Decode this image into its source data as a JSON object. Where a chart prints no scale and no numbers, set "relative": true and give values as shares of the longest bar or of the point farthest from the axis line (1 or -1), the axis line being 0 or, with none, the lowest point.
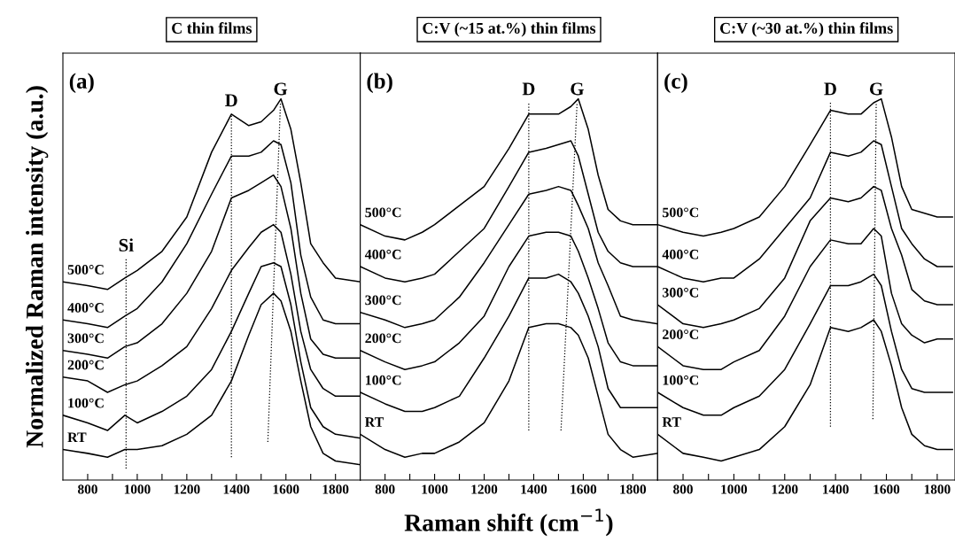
{
  "chart_data": [
    {
      "type": "line",
      "title": "C thin films",
      "ylabel": "Normalized Raman intensity (a.u.)",
      "relative": true,
      "tick_labels": "x",
      "line_style": "solid",
      "x": [
        700,
        800,
        880,
        950,
        1000,
        1100,
        1200,
        1300,
        1380,
        1450,
        1500,
        1550,
        1580,
        1620,
        1660,
        1700,
        1750,
        1800,
        1900
      ],
      "xlim": [
        700,
        1900
      ],
      "xticks": [
        800,
        {
          "value": 900,
          "label": null
        },
        1000,
        {
          "value": 1100,
          "label": null
        },
        1200,
        {
          "value": 1300,
          "label": null
        },
        1400,
        {
          "value": 1500,
          "label": null
        },
        1600,
        {
          "value": 1700,
          "label": null
        },
        1800
      ],
      "series": [
        {
          "name": "RT",
          "color": "#000000",
          "values": [
            0.08,
            0.07,
            0.06,
            0.08,
            0.08,
            0.09,
            0.12,
            0.17,
            0.26,
            0.38,
            0.46,
            0.49,
            0.47,
            0.39,
            0.26,
            0.14,
            0.07,
            0.05,
            0.04
          ]
        },
        {
          "name": "100°C",
          "color": "#000000",
          "values": [
            0.17,
            0.15,
            0.13,
            0.17,
            0.15,
            0.18,
            0.22,
            0.29,
            0.39,
            0.49,
            0.56,
            0.57,
            0.56,
            0.46,
            0.31,
            0.19,
            0.14,
            0.12,
            0.11
          ]
        },
        {
          "name": "200°C",
          "color": "#000000",
          "values": [
            0.27,
            0.26,
            0.23,
            0.25,
            0.26,
            0.3,
            0.35,
            0.45,
            0.55,
            0.61,
            0.65,
            0.67,
            0.65,
            0.54,
            0.39,
            0.29,
            0.24,
            0.22,
            0.22
          ]
        },
        {
          "name": "300°C",
          "color": "#000000",
          "values": [
            0.34,
            0.33,
            0.32,
            0.35,
            0.36,
            0.41,
            0.49,
            0.6,
            0.74,
            0.76,
            0.78,
            0.8,
            0.77,
            0.66,
            0.49,
            0.37,
            0.33,
            0.32,
            0.32
          ]
        },
        {
          "name": "400°C",
          "color": "#000000",
          "values": [
            0.42,
            0.41,
            0.4,
            0.43,
            0.45,
            0.52,
            0.62,
            0.75,
            0.85,
            0.85,
            0.86,
            0.89,
            0.88,
            0.78,
            0.59,
            0.48,
            0.42,
            0.41,
            0.41
          ]
        },
        {
          "name": "500°C",
          "color": "#000000",
          "values": [
            0.52,
            0.51,
            0.5,
            0.53,
            0.55,
            0.6,
            0.69,
            0.86,
            0.96,
            0.93,
            0.94,
            0.97,
            1.0,
            0.92,
            0.78,
            0.62,
            0.57,
            0.53,
            0.52
          ]
        },
        {
          "color": "#000000",
          "line_style": "dotted",
          "x": [
            955,
            955
          ],
          "values": [
            0.03,
            0.58
          ]
        },
        {
          "color": "#000000",
          "line_style": "dotted",
          "x": [
            1380,
            1380
          ],
          "values": [
            0.06,
            0.96
          ]
        },
        {
          "color": "#000000",
          "line_style": "dotted",
          "x": [
            1527,
            1578
          ],
          "values": [
            0.1,
            0.99
          ]
        }
      ],
      "annotations": [
        "(a)",
        "Si",
        "D",
        "G"
      ]
    },
    {
      "type": "line",
      "title": "C:V (~15 at.%) thin films",
      "xlabel": "Raman shift (cm$^{−1}$)",
      "relative": true,
      "tick_labels": "x",
      "line_style": "solid",
      "x": [
        700,
        800,
        880,
        950,
        1000,
        1100,
        1200,
        1300,
        1380,
        1450,
        1500,
        1550,
        1580,
        1620,
        1660,
        1700,
        1750,
        1800,
        1900
      ],
      "xlim": [
        700,
        1900
      ],
      "xticks": [
        800,
        {
          "value": 900,
          "label": null
        },
        1000,
        {
          "value": 1100,
          "label": null
        },
        1200,
        {
          "value": 1300,
          "label": null
        },
        1400,
        {
          "value": 1500,
          "label": null
        },
        1600,
        {
          "value": 1700,
          "label": null
        },
        1800
      ],
      "series": [
        {
          "name": "RT",
          "color": "#000000",
          "values": [
            0.12,
            0.08,
            0.06,
            0.07,
            0.07,
            0.1,
            0.15,
            0.26,
            0.4,
            0.41,
            0.41,
            0.4,
            0.38,
            0.32,
            0.22,
            0.12,
            0.08,
            0.06,
            0.07
          ]
        },
        {
          "name": "100°C",
          "color": "#000000",
          "values": [
            0.23,
            0.2,
            0.18,
            0.18,
            0.19,
            0.22,
            0.32,
            0.43,
            0.53,
            0.53,
            0.54,
            0.52,
            0.49,
            0.43,
            0.35,
            0.24,
            0.19,
            0.19,
            0.19
          ]
        },
        {
          "name": "200°C",
          "color": "#000000",
          "values": [
            0.34,
            0.31,
            0.29,
            0.3,
            0.31,
            0.36,
            0.43,
            0.56,
            0.64,
            0.65,
            0.65,
            0.64,
            0.6,
            0.53,
            0.45,
            0.36,
            0.31,
            0.3,
            0.3
          ]
        },
        {
          "name": "300°C",
          "color": "#000000",
          "values": [
            0.44,
            0.42,
            0.4,
            0.41,
            0.42,
            0.48,
            0.57,
            0.67,
            0.75,
            0.76,
            0.77,
            0.76,
            0.72,
            0.66,
            0.57,
            0.51,
            0.43,
            0.42,
            0.41
          ]
        },
        {
          "name": "400°C",
          "color": "#000000",
          "values": [
            0.56,
            0.53,
            0.52,
            0.53,
            0.54,
            0.6,
            0.66,
            0.77,
            0.86,
            0.87,
            0.88,
            0.89,
            0.85,
            0.75,
            0.65,
            0.6,
            0.57,
            0.56,
            0.56
          ]
        },
        {
          "name": "500°C",
          "color": "#000000",
          "values": [
            0.67,
            0.64,
            0.63,
            0.65,
            0.67,
            0.72,
            0.77,
            0.87,
            0.96,
            0.96,
            0.96,
            0.98,
            1.0,
            0.92,
            0.8,
            0.71,
            0.68,
            0.67,
            0.67
          ]
        },
        {
          "color": "#000000",
          "line_style": "dotted",
          "x": [
            1380,
            1380
          ],
          "values": [
            0.13,
            0.99
          ]
        },
        {
          "color": "#000000",
          "line_style": "dotted",
          "x": [
            1510,
            1575
          ],
          "values": [
            0.13,
            0.99
          ]
        }
      ],
      "annotations": [
        "(b)",
        "D",
        "G"
      ]
    },
    {
      "type": "line",
      "title": "C:V (~30 at.%) thin films",
      "relative": true,
      "tick_labels": "x",
      "line_style": "solid",
      "x": [
        700,
        800,
        880,
        950,
        1000,
        1100,
        1200,
        1300,
        1380,
        1450,
        1500,
        1550,
        1580,
        1620,
        1660,
        1700,
        1750,
        1800,
        1860
      ],
      "xlim": [
        700,
        1870
      ],
      "xticks": [
        800,
        {
          "value": 900,
          "label": null
        },
        1000,
        {
          "value": 1100,
          "label": null
        },
        1200,
        {
          "value": 1300,
          "label": null
        },
        1400,
        {
          "value": 1500,
          "label": null
        },
        1600,
        {
          "value": 1700,
          "label": null
        },
        1800
      ],
      "series": [
        {
          "name": "RT",
          "color": "#000000",
          "values": [
            0.12,
            0.07,
            0.06,
            0.05,
            0.06,
            0.08,
            0.14,
            0.25,
            0.4,
            0.39,
            0.4,
            0.42,
            0.39,
            0.3,
            0.19,
            0.12,
            0.09,
            0.08,
            0.08
          ]
        },
        {
          "name": "100°C",
          "color": "#000000",
          "values": [
            0.23,
            0.19,
            0.17,
            0.17,
            0.19,
            0.22,
            0.29,
            0.41,
            0.51,
            0.51,
            0.52,
            0.54,
            0.51,
            0.39,
            0.29,
            0.24,
            0.23,
            0.23,
            0.23
          ]
        },
        {
          "name": "200°C",
          "color": "#000000",
          "values": [
            0.35,
            0.3,
            0.29,
            0.29,
            0.31,
            0.34,
            0.43,
            0.56,
            0.63,
            0.62,
            0.62,
            0.66,
            0.64,
            0.49,
            0.41,
            0.38,
            0.36,
            0.37,
            0.37
          ]
        },
        {
          "name": "300°C",
          "color": "#000000",
          "values": [
            0.46,
            0.41,
            0.4,
            0.41,
            0.42,
            0.45,
            0.53,
            0.68,
            0.74,
            0.73,
            0.74,
            0.77,
            0.76,
            0.66,
            0.59,
            0.5,
            0.47,
            0.46,
            0.46
          ]
        },
        {
          "name": "400°C",
          "color": "#000000",
          "values": [
            0.56,
            0.53,
            0.52,
            0.53,
            0.53,
            0.58,
            0.66,
            0.74,
            0.86,
            0.85,
            0.86,
            0.89,
            0.88,
            0.77,
            0.66,
            0.62,
            0.58,
            0.56,
            0.56
          ]
        },
        {
          "name": "500°C",
          "color": "#000000",
          "values": [
            0.67,
            0.65,
            0.64,
            0.65,
            0.66,
            0.69,
            0.77,
            0.88,
            0.97,
            0.96,
            0.96,
            0.99,
            1.0,
            0.9,
            0.77,
            0.71,
            0.7,
            0.69,
            0.69
          ]
        },
        {
          "color": "#000000",
          "line_style": "dotted",
          "x": [
            1380,
            1380
          ],
          "values": [
            0.14,
            0.99
          ]
        },
        {
          "color": "#000000",
          "line_style": "dotted",
          "x": [
            1547,
            1560
          ],
          "values": [
            0.16,
            0.99
          ]
        }
      ],
      "annotations": [
        "(c)",
        "D",
        "G"
      ]
    }
  ]
}
